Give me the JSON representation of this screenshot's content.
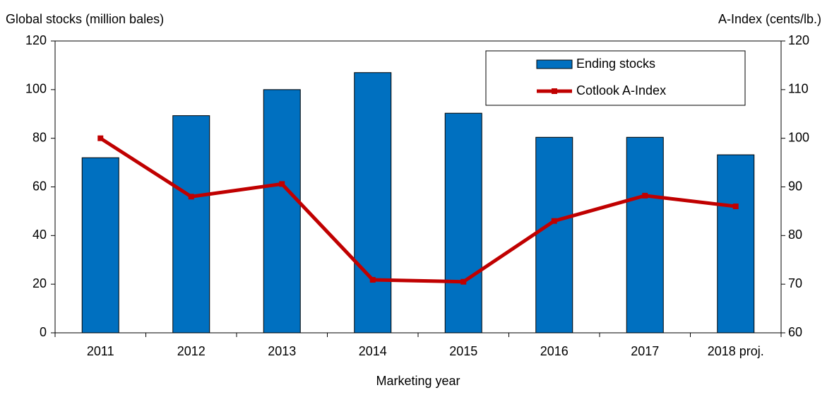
{
  "chart_data": {
    "type": "bar",
    "ylabel": "Global stocks (million bales)",
    "y2label": "A-Index (cents/lb.)",
    "xlabel": "Marketing year",
    "categories": [
      "2011",
      "2012",
      "2013",
      "2014",
      "2015",
      "2016",
      "2017",
      "2018 proj."
    ],
    "series": [
      {
        "name": "Ending stocks",
        "type": "bar",
        "color": "#0070c0",
        "values": [
          72,
          89.3,
          100,
          107,
          90.3,
          80.4,
          80.4,
          73.2
        ]
      },
      {
        "name": "Cotlook A-Index",
        "type": "line",
        "axis": "y2",
        "color": "#c00000",
        "values": [
          100,
          88.0,
          90.6,
          70.9,
          70.5,
          83.0,
          88.2,
          86.0
        ]
      }
    ],
    "ylim": [
      0,
      120
    ],
    "yticks": [
      0,
      20,
      40,
      60,
      80,
      100,
      120
    ],
    "y2lim": [
      60,
      120
    ],
    "y2ticks": [
      60,
      70,
      80,
      90,
      100,
      110,
      120
    ],
    "legend": "upper right"
  }
}
